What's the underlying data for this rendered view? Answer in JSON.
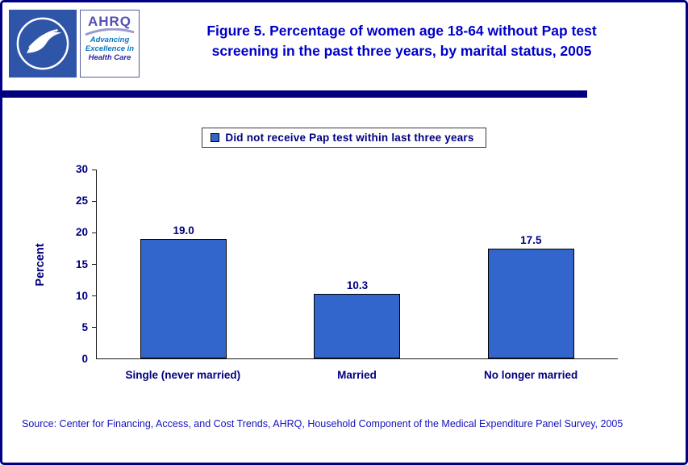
{
  "header": {
    "title_line1": "Figure 5. Percentage of women age 18-64 without Pap test",
    "title_line2": "screening in the past three years, by marital status, 2005",
    "ahrq_logo": {
      "acronym": "AHRQ",
      "tagline_line1": "Advancing",
      "tagline_line2": "Excellence in",
      "tagline_line3": "Health Care"
    }
  },
  "legend": {
    "label": "Did not receive Pap test within last three years"
  },
  "chart_data": {
    "type": "bar",
    "title": "Figure 5. Percentage of women age 18-64 without Pap test screening in the past three years, by marital status, 2005",
    "series_name": "Did not receive Pap test within last three years",
    "categories": [
      "Single (never married)",
      "Married",
      "No longer married"
    ],
    "values": [
      19.0,
      10.3,
      17.5
    ],
    "value_labels": [
      "19.0",
      "10.3",
      "17.5"
    ],
    "xlabel": "",
    "ylabel": "Percent",
    "ylim": [
      0,
      30
    ],
    "yticks": [
      0,
      5,
      10,
      15,
      20,
      25,
      30
    ],
    "grid": false,
    "legend_position": "top-center",
    "bar_color": "#3366cc",
    "bar_border_color": "#000000"
  },
  "footer": {
    "source": "Source: Center for Financing, Access, and Cost Trends, AHRQ, Household Component of the Medical Expenditure Panel Survey, 2005"
  },
  "colors": {
    "title_blue": "#0000c8",
    "label_navy": "#000080",
    "rule_navy": "#000080",
    "page_border": "#000086"
  }
}
